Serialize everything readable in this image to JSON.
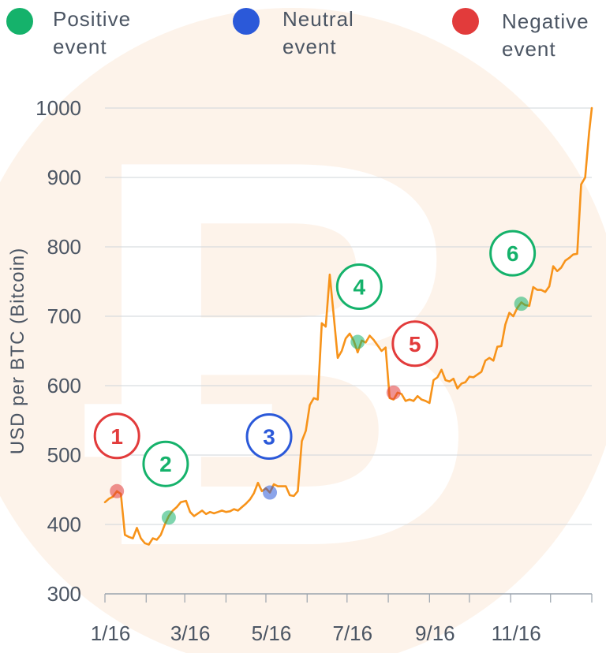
{
  "chart_data": {
    "type": "line",
    "title": "",
    "xlabel": "",
    "ylabel": "USD per BTC (Bitcoin)",
    "ylim": [
      300,
      1000
    ],
    "yticks": [
      300,
      400,
      500,
      600,
      700,
      800,
      900,
      1000
    ],
    "xticks": [
      {
        "date": "2016-01-01",
        "label": "1/16"
      },
      {
        "date": "2016-03-01",
        "label": "3/16"
      },
      {
        "date": "2016-05-01",
        "label": "5/16"
      },
      {
        "date": "2016-07-01",
        "label": "7/16"
      },
      {
        "date": "2016-09-01",
        "label": "9/16"
      },
      {
        "date": "2016-11-01",
        "label": "11/16"
      }
    ],
    "grid": true,
    "legend_position": "top",
    "series": [
      {
        "color": "#f7931a",
        "points": [
          [
            "2016-01-01",
            432
          ],
          [
            "2016-01-04",
            437
          ],
          [
            "2016-01-07",
            440
          ],
          [
            "2016-01-10",
            448
          ],
          [
            "2016-01-13",
            444
          ],
          [
            "2016-01-16",
            385
          ],
          [
            "2016-01-19",
            382
          ],
          [
            "2016-01-22",
            380
          ],
          [
            "2016-01-25",
            395
          ],
          [
            "2016-01-28",
            380
          ],
          [
            "2016-01-31",
            373
          ],
          [
            "2016-02-03",
            371
          ],
          [
            "2016-02-06",
            380
          ],
          [
            "2016-02-09",
            378
          ],
          [
            "2016-02-12",
            385
          ],
          [
            "2016-02-15",
            400
          ],
          [
            "2016-02-18",
            412
          ],
          [
            "2016-02-21",
            420
          ],
          [
            "2016-02-24",
            425
          ],
          [
            "2016-02-27",
            432
          ],
          [
            "2016-03-02",
            434
          ],
          [
            "2016-03-05",
            418
          ],
          [
            "2016-03-08",
            412
          ],
          [
            "2016-03-11",
            416
          ],
          [
            "2016-03-14",
            420
          ],
          [
            "2016-03-17",
            415
          ],
          [
            "2016-03-20",
            418
          ],
          [
            "2016-03-23",
            416
          ],
          [
            "2016-03-26",
            418
          ],
          [
            "2016-03-29",
            420
          ],
          [
            "2016-04-01",
            418
          ],
          [
            "2016-04-04",
            419
          ],
          [
            "2016-04-07",
            422
          ],
          [
            "2016-04-10",
            420
          ],
          [
            "2016-04-13",
            425
          ],
          [
            "2016-04-16",
            430
          ],
          [
            "2016-04-19",
            436
          ],
          [
            "2016-04-22",
            445
          ],
          [
            "2016-04-25",
            460
          ],
          [
            "2016-04-28",
            448
          ],
          [
            "2016-05-01",
            452
          ],
          [
            "2016-05-04",
            446
          ],
          [
            "2016-05-07",
            458
          ],
          [
            "2016-05-10",
            455
          ],
          [
            "2016-05-13",
            455
          ],
          [
            "2016-05-16",
            455
          ],
          [
            "2016-05-19",
            442
          ],
          [
            "2016-05-22",
            441
          ],
          [
            "2016-05-25",
            448
          ],
          [
            "2016-05-28",
            520
          ],
          [
            "2016-05-31",
            535
          ],
          [
            "2016-06-03",
            572
          ],
          [
            "2016-06-06",
            582
          ],
          [
            "2016-06-09",
            580
          ],
          [
            "2016-06-12",
            690
          ],
          [
            "2016-06-15",
            685
          ],
          [
            "2016-06-18",
            760
          ],
          [
            "2016-06-21",
            700
          ],
          [
            "2016-06-24",
            640
          ],
          [
            "2016-06-27",
            650
          ],
          [
            "2016-06-30",
            668
          ],
          [
            "2016-07-03",
            675
          ],
          [
            "2016-07-06",
            665
          ],
          [
            "2016-07-09",
            648
          ],
          [
            "2016-07-12",
            665
          ],
          [
            "2016-07-15",
            662
          ],
          [
            "2016-07-18",
            672
          ],
          [
            "2016-07-21",
            666
          ],
          [
            "2016-07-24",
            658
          ],
          [
            "2016-07-27",
            650
          ],
          [
            "2016-07-30",
            655
          ],
          [
            "2016-08-02",
            582
          ],
          [
            "2016-08-05",
            580
          ],
          [
            "2016-08-08",
            590
          ],
          [
            "2016-08-11",
            588
          ],
          [
            "2016-08-14",
            578
          ],
          [
            "2016-08-17",
            580
          ],
          [
            "2016-08-20",
            578
          ],
          [
            "2016-08-23",
            585
          ],
          [
            "2016-08-26",
            580
          ],
          [
            "2016-08-29",
            578
          ],
          [
            "2016-09-01",
            575
          ],
          [
            "2016-09-04",
            608
          ],
          [
            "2016-09-07",
            612
          ],
          [
            "2016-09-10",
            623
          ],
          [
            "2016-09-13",
            608
          ],
          [
            "2016-09-16",
            606
          ],
          [
            "2016-09-19",
            610
          ],
          [
            "2016-09-22",
            596
          ],
          [
            "2016-09-25",
            603
          ],
          [
            "2016-09-28",
            605
          ],
          [
            "2016-10-01",
            613
          ],
          [
            "2016-10-04",
            612
          ],
          [
            "2016-10-07",
            616
          ],
          [
            "2016-10-10",
            620
          ],
          [
            "2016-10-13",
            636
          ],
          [
            "2016-10-16",
            640
          ],
          [
            "2016-10-19",
            636
          ],
          [
            "2016-10-22",
            656
          ],
          [
            "2016-10-25",
            657
          ],
          [
            "2016-10-28",
            688
          ],
          [
            "2016-10-31",
            705
          ],
          [
            "2016-11-03",
            700
          ],
          [
            "2016-11-06",
            712
          ],
          [
            "2016-11-09",
            720
          ],
          [
            "2016-11-12",
            716
          ],
          [
            "2016-11-15",
            715
          ],
          [
            "2016-11-18",
            742
          ],
          [
            "2016-11-21",
            738
          ],
          [
            "2016-11-24",
            738
          ],
          [
            "2016-11-27",
            735
          ],
          [
            "2016-11-30",
            743
          ],
          [
            "2016-12-03",
            772
          ],
          [
            "2016-12-06",
            765
          ],
          [
            "2016-12-09",
            770
          ],
          [
            "2016-12-12",
            780
          ],
          [
            "2016-12-15",
            784
          ],
          [
            "2016-12-18",
            789
          ],
          [
            "2016-12-21",
            790
          ],
          [
            "2016-12-24",
            890
          ],
          [
            "2016-12-27",
            900
          ],
          [
            "2016-12-30",
            965
          ],
          [
            "2017-01-01",
            1000
          ]
        ]
      }
    ],
    "legend": [
      {
        "label": "Positive\nevent",
        "color": "#15b26b"
      },
      {
        "label": "Neutral\nevent",
        "color": "#2b59d9"
      },
      {
        "label": "Negative\nevent",
        "color": "#e23b3b"
      }
    ],
    "annotations": [
      {
        "label": "1",
        "sentiment": "negative",
        "date": "2016-01-10",
        "value": 448,
        "color": "#e23b3b"
      },
      {
        "label": "2",
        "sentiment": "positive",
        "date": "2016-02-18",
        "value": 410,
        "color": "#15b26b"
      },
      {
        "label": "3",
        "sentiment": "neutral",
        "date": "2016-05-04",
        "value": 446,
        "color": "#2b59d9"
      },
      {
        "label": "4",
        "sentiment": "positive",
        "date": "2016-07-09",
        "value": 663,
        "color": "#15b26b"
      },
      {
        "label": "5",
        "sentiment": "negative",
        "date": "2016-08-05",
        "value": 590,
        "color": "#e23b3b"
      },
      {
        "label": "6",
        "sentiment": "positive",
        "date": "2016-11-09",
        "value": 718,
        "color": "#15b26b"
      }
    ]
  }
}
